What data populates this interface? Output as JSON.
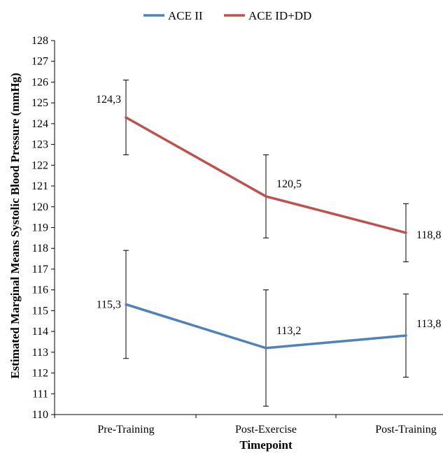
{
  "chart_data": {
    "type": "line",
    "xlabel": "Timepoint",
    "ylabel": "Estimated Marginal Means Systolic Blood Pressure (mmHg)",
    "categories": [
      "Pre-Training",
      "Post-Exercise",
      "Post-Training"
    ],
    "ylim": [
      110,
      128
    ],
    "ytick_step": 1,
    "grid": false,
    "legend_position": "top",
    "series": [
      {
        "name": "ACE II",
        "color": "#4F81BD",
        "values": [
          115.3,
          113.2,
          113.8
        ],
        "labels": [
          "115,3",
          "113,2",
          "113,8"
        ],
        "error_low": [
          112.7,
          110.4,
          111.8
        ],
        "error_high": [
          117.9,
          116.0,
          115.8
        ]
      },
      {
        "name": "ACE ID+DD",
        "color": "#C0504D",
        "values": [
          124.3,
          120.5,
          118.75
        ],
        "labels": [
          "124,3",
          "120,5",
          "118,8"
        ],
        "error_low": [
          122.5,
          118.5,
          117.35
        ],
        "error_high": [
          126.1,
          122.5,
          120.15
        ]
      }
    ]
  }
}
